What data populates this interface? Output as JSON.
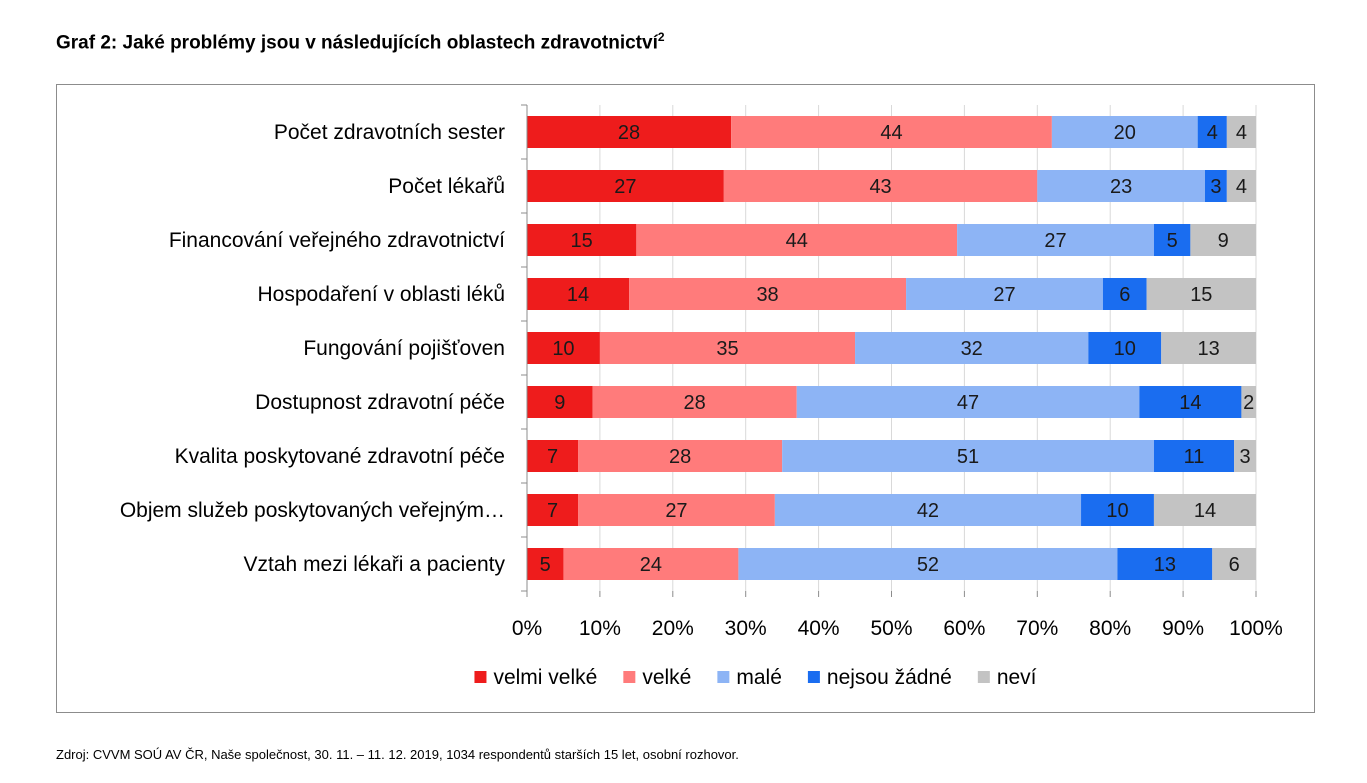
{
  "title": "Graf 2: Jaké problémy jsou v následujících oblastech zdravotnictví",
  "title_sup": "2",
  "source": "Zdroj: CVVM SOÚ AV ČR, Naše společnost, 30. 11. – 11. 12. 2019, 1034 respondentů starších 15 let, osobní rozhovor.",
  "chart_data": {
    "type": "bar",
    "orientation": "horizontal",
    "stacked": "percent",
    "categories": [
      "Počet zdravotních sester",
      "Počet lékařů",
      "Financování veřejného zdravotnictví",
      "Hospodaření v oblasti léků",
      "Fungování pojišťoven",
      "Dostupnost zdravotní péče",
      "Kvalita poskytované zdravotní péče",
      "Objem služeb poskytovaných veřejným…",
      "Vztah mezi lékaři a pacienty"
    ],
    "series": [
      {
        "name": "velmi velké",
        "color": "#ee1c1c",
        "values": [
          28,
          27,
          15,
          14,
          10,
          9,
          7,
          7,
          5
        ]
      },
      {
        "name": "velké",
        "color": "#ff7b7b",
        "values": [
          44,
          43,
          44,
          38,
          35,
          28,
          28,
          27,
          24
        ]
      },
      {
        "name": "malé",
        "color": "#8db4f5",
        "values": [
          20,
          23,
          27,
          27,
          32,
          47,
          51,
          42,
          52
        ]
      },
      {
        "name": "nejsou žádné",
        "color": "#1a6df0",
        "values": [
          4,
          3,
          5,
          6,
          10,
          14,
          11,
          10,
          13
        ]
      },
      {
        "name": "neví",
        "color": "#c3c3c3",
        "values": [
          4,
          4,
          9,
          15,
          13,
          2,
          3,
          14,
          6
        ]
      }
    ],
    "xlim": [
      0,
      100
    ],
    "x_ticks": [
      "0%",
      "10%",
      "20%",
      "30%",
      "40%",
      "50%",
      "60%",
      "70%",
      "80%",
      "90%",
      "100%"
    ],
    "grid": true,
    "legend_position": "bottom"
  }
}
